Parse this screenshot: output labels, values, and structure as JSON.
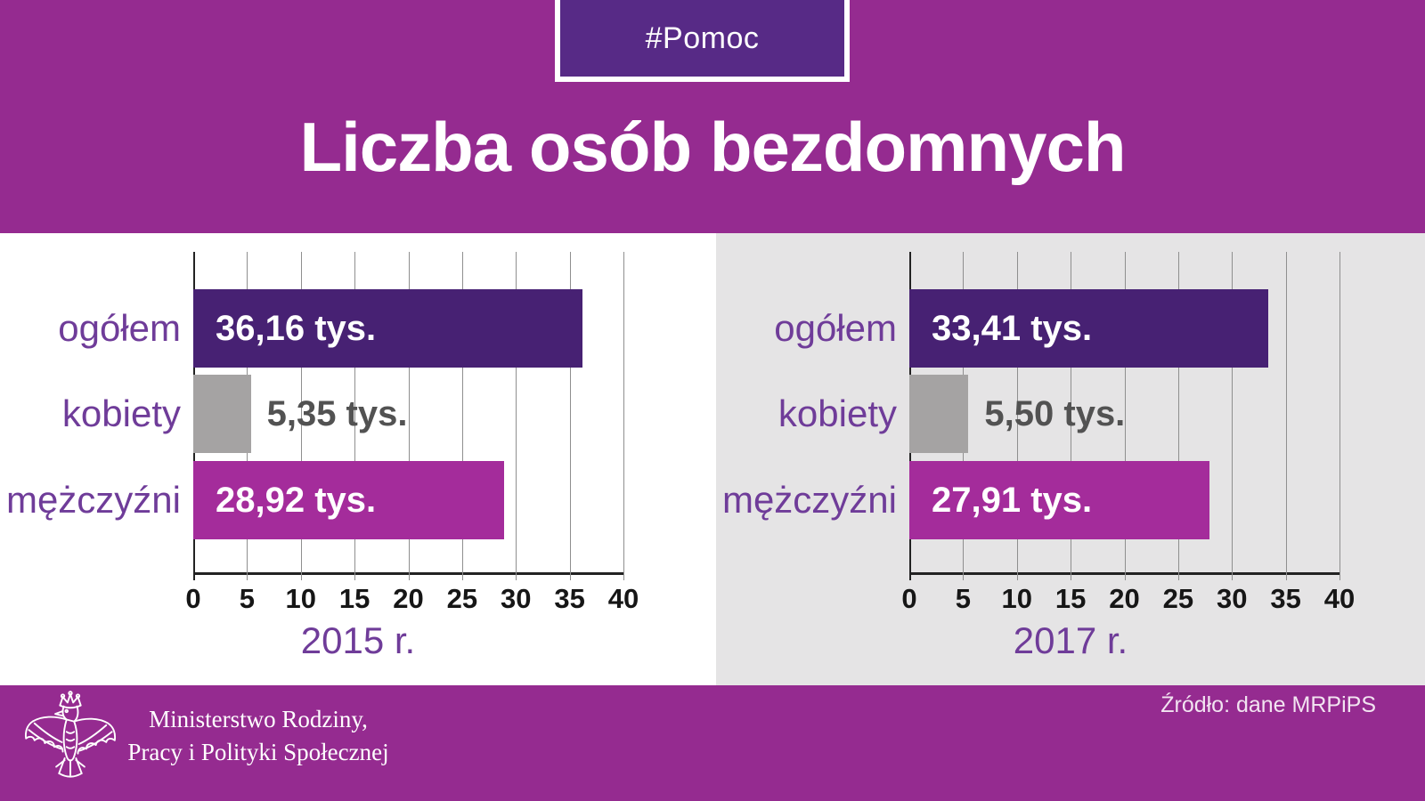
{
  "header": {
    "badge_label": "#Pomoc",
    "title": "Liczba osób bezdomnych"
  },
  "chart_data": [
    {
      "type": "bar",
      "orientation": "horizontal",
      "year_label": "2015 r.",
      "categories": [
        "ogółem",
        "kobiety",
        "mężczyźni"
      ],
      "values": [
        36.16,
        5.35,
        28.92
      ],
      "value_labels": [
        "36,16 tys.",
        "5,35 tys.",
        "28,92 tys."
      ],
      "value_label_inside": [
        true,
        false,
        true
      ],
      "bar_colors": [
        "#472173",
        "#a5a3a3",
        "#a42c9b"
      ],
      "unit": "tys.",
      "xlim": [
        0,
        40
      ],
      "xticks": [
        0,
        5,
        10,
        15,
        20,
        25,
        30,
        35,
        40
      ],
      "grid": true,
      "legend": false
    },
    {
      "type": "bar",
      "orientation": "horizontal",
      "year_label": "2017 r.",
      "categories": [
        "ogółem",
        "kobiety",
        "mężczyźni"
      ],
      "values": [
        33.41,
        5.5,
        27.91
      ],
      "value_labels": [
        "33,41 tys.",
        "5,50 tys.",
        "27,91 tys."
      ],
      "value_label_inside": [
        true,
        false,
        true
      ],
      "bar_colors": [
        "#472173",
        "#a5a3a3",
        "#a42c9b"
      ],
      "unit": "tys.",
      "xlim": [
        0,
        40
      ],
      "xticks": [
        0,
        5,
        10,
        15,
        20,
        25,
        30,
        35,
        40
      ],
      "grid": true,
      "legend": false
    }
  ],
  "footer": {
    "ministry_line1": "Ministerstwo Rodziny,",
    "ministry_line2": "Pracy i Polityki Społecznej",
    "source": "Źródło: dane MRPiPS"
  },
  "colors": {
    "band_magenta": "#952b90",
    "badge_purple": "#572a86",
    "panel_2015_bg": "#ffffff",
    "panel_2017_bg": "#e5e4e5",
    "bar_total_purple": "#472173",
    "bar_women_gray": "#a5a3a3",
    "bar_men_magenta": "#a42c9b",
    "category_label_purple": "#6f3c99",
    "value_outside_gray": "#525252",
    "axis_black": "#222222",
    "gridline_gray": "#8f8f8f"
  }
}
